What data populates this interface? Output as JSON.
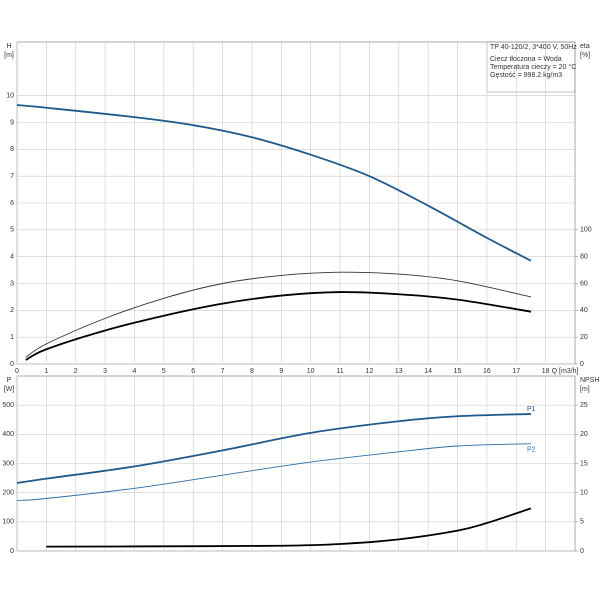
{
  "chart_data": [
    {
      "type": "line",
      "ylabel": "H",
      "yunit": "[m]",
      "y2label": "eta",
      "y2unit": "[%]",
      "xlabel": "Q [m3/h]",
      "annotations": [
        "TP 40-120/2, 3*400 V, 50Hz",
        "Ciecz tłoczona = Woda",
        "Temperatura cieczy = 20 °C",
        "Gęstość = 998.2 kg/m3"
      ],
      "xlim": [
        0,
        19
      ],
      "xticks": [
        0,
        1,
        2,
        3,
        4,
        5,
        6,
        7,
        8,
        9,
        10,
        11,
        12,
        13,
        14,
        15,
        16,
        17,
        18
      ],
      "ylim": [
        0,
        12
      ],
      "yticks": [
        0,
        1,
        2,
        3,
        4,
        5,
        6,
        7,
        8,
        9,
        10
      ],
      "y2lim": [
        0,
        240
      ],
      "y2ticks": [
        0,
        20,
        40,
        60,
        80,
        100
      ],
      "grid": true,
      "series": [
        {
          "color": "#1f5a8c",
          "width": 1.8,
          "x": [
            0,
            1,
            4,
            6,
            8,
            10,
            12,
            14,
            16,
            17.5
          ],
          "values": [
            9.65,
            9.55,
            9.2,
            8.9,
            8.45,
            7.8,
            7.0,
            5.9,
            4.7,
            3.85
          ]
        },
        {
          "color": "#333333",
          "width": 0.9,
          "axis": "y2",
          "x": [
            0.3,
            1,
            3,
            5,
            7,
            9,
            11,
            13,
            15,
            17.5
          ],
          "values": [
            5,
            15,
            34,
            49,
            60,
            66,
            68.4,
            67,
            62,
            50
          ]
        },
        {
          "color": "#000000",
          "width": 1.8,
          "axis": "y2",
          "x": [
            0.3,
            1,
            3,
            5,
            7,
            9,
            11,
            13,
            15,
            17.5
          ],
          "values": [
            3,
            11,
            25,
            36,
            45,
            51,
            53.6,
            52,
            48,
            39
          ]
        }
      ]
    },
    {
      "type": "line",
      "ylabel": "P",
      "yunit": "[W]",
      "y2label": "NPSH",
      "y2unit": "[m]",
      "xlim": [
        0,
        19
      ],
      "ylim": [
        0,
        600
      ],
      "yticks": [
        0,
        100,
        200,
        300,
        400,
        500
      ],
      "y2lim": [
        0,
        30
      ],
      "y2ticks": [
        0,
        5,
        10,
        15,
        20,
        25
      ],
      "grid": true,
      "series": [
        {
          "name": "P1",
          "color": "#1f5a8c",
          "width": 1.8,
          "x": [
            0,
            1,
            4,
            7,
            10,
            13,
            15,
            17.5
          ],
          "values": [
            233,
            248,
            290,
            345,
            405,
            445,
            462,
            470
          ]
        },
        {
          "name": "P2",
          "color": "#2e6da4",
          "width": 0.9,
          "x": [
            0,
            1,
            4,
            7,
            10,
            13,
            15,
            17.5
          ],
          "values": [
            173,
            180,
            215,
            260,
            305,
            340,
            360,
            368
          ]
        },
        {
          "color": "#000000",
          "width": 1.8,
          "axis": "y2",
          "x": [
            1,
            5,
            9,
            11,
            13,
            15,
            16,
            17.5
          ],
          "values": [
            0.75,
            0.8,
            0.9,
            1.2,
            2.0,
            3.5,
            4.8,
            7.3
          ]
        }
      ]
    }
  ]
}
